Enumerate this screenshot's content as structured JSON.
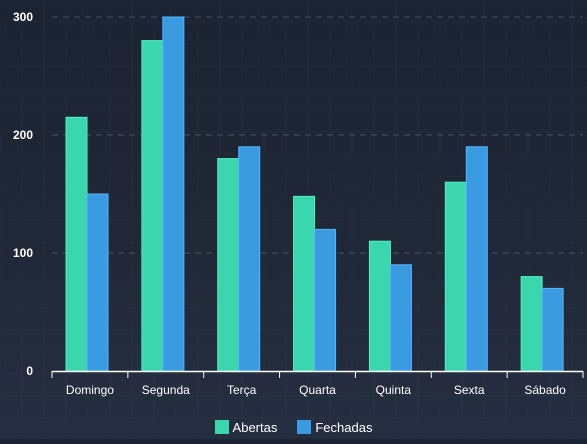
{
  "chart_data": {
    "type": "bar",
    "categories": [
      "Domingo",
      "Segunda",
      "Terça",
      "Quarta",
      "Quinta",
      "Sexta",
      "Sábado"
    ],
    "series": [
      {
        "name": "Abertas",
        "values": [
          215,
          280,
          180,
          148,
          110,
          160,
          80
        ],
        "color": "#3ad6ad"
      },
      {
        "name": "Fechadas",
        "values": [
          150,
          300,
          190,
          120,
          90,
          190,
          70
        ],
        "color": "#3a9be0"
      }
    ],
    "y_ticks": [
      "0",
      "100",
      "200",
      "300"
    ],
    "ylim": [
      0,
      300
    ],
    "grid": true,
    "legend": "bottom-center"
  }
}
